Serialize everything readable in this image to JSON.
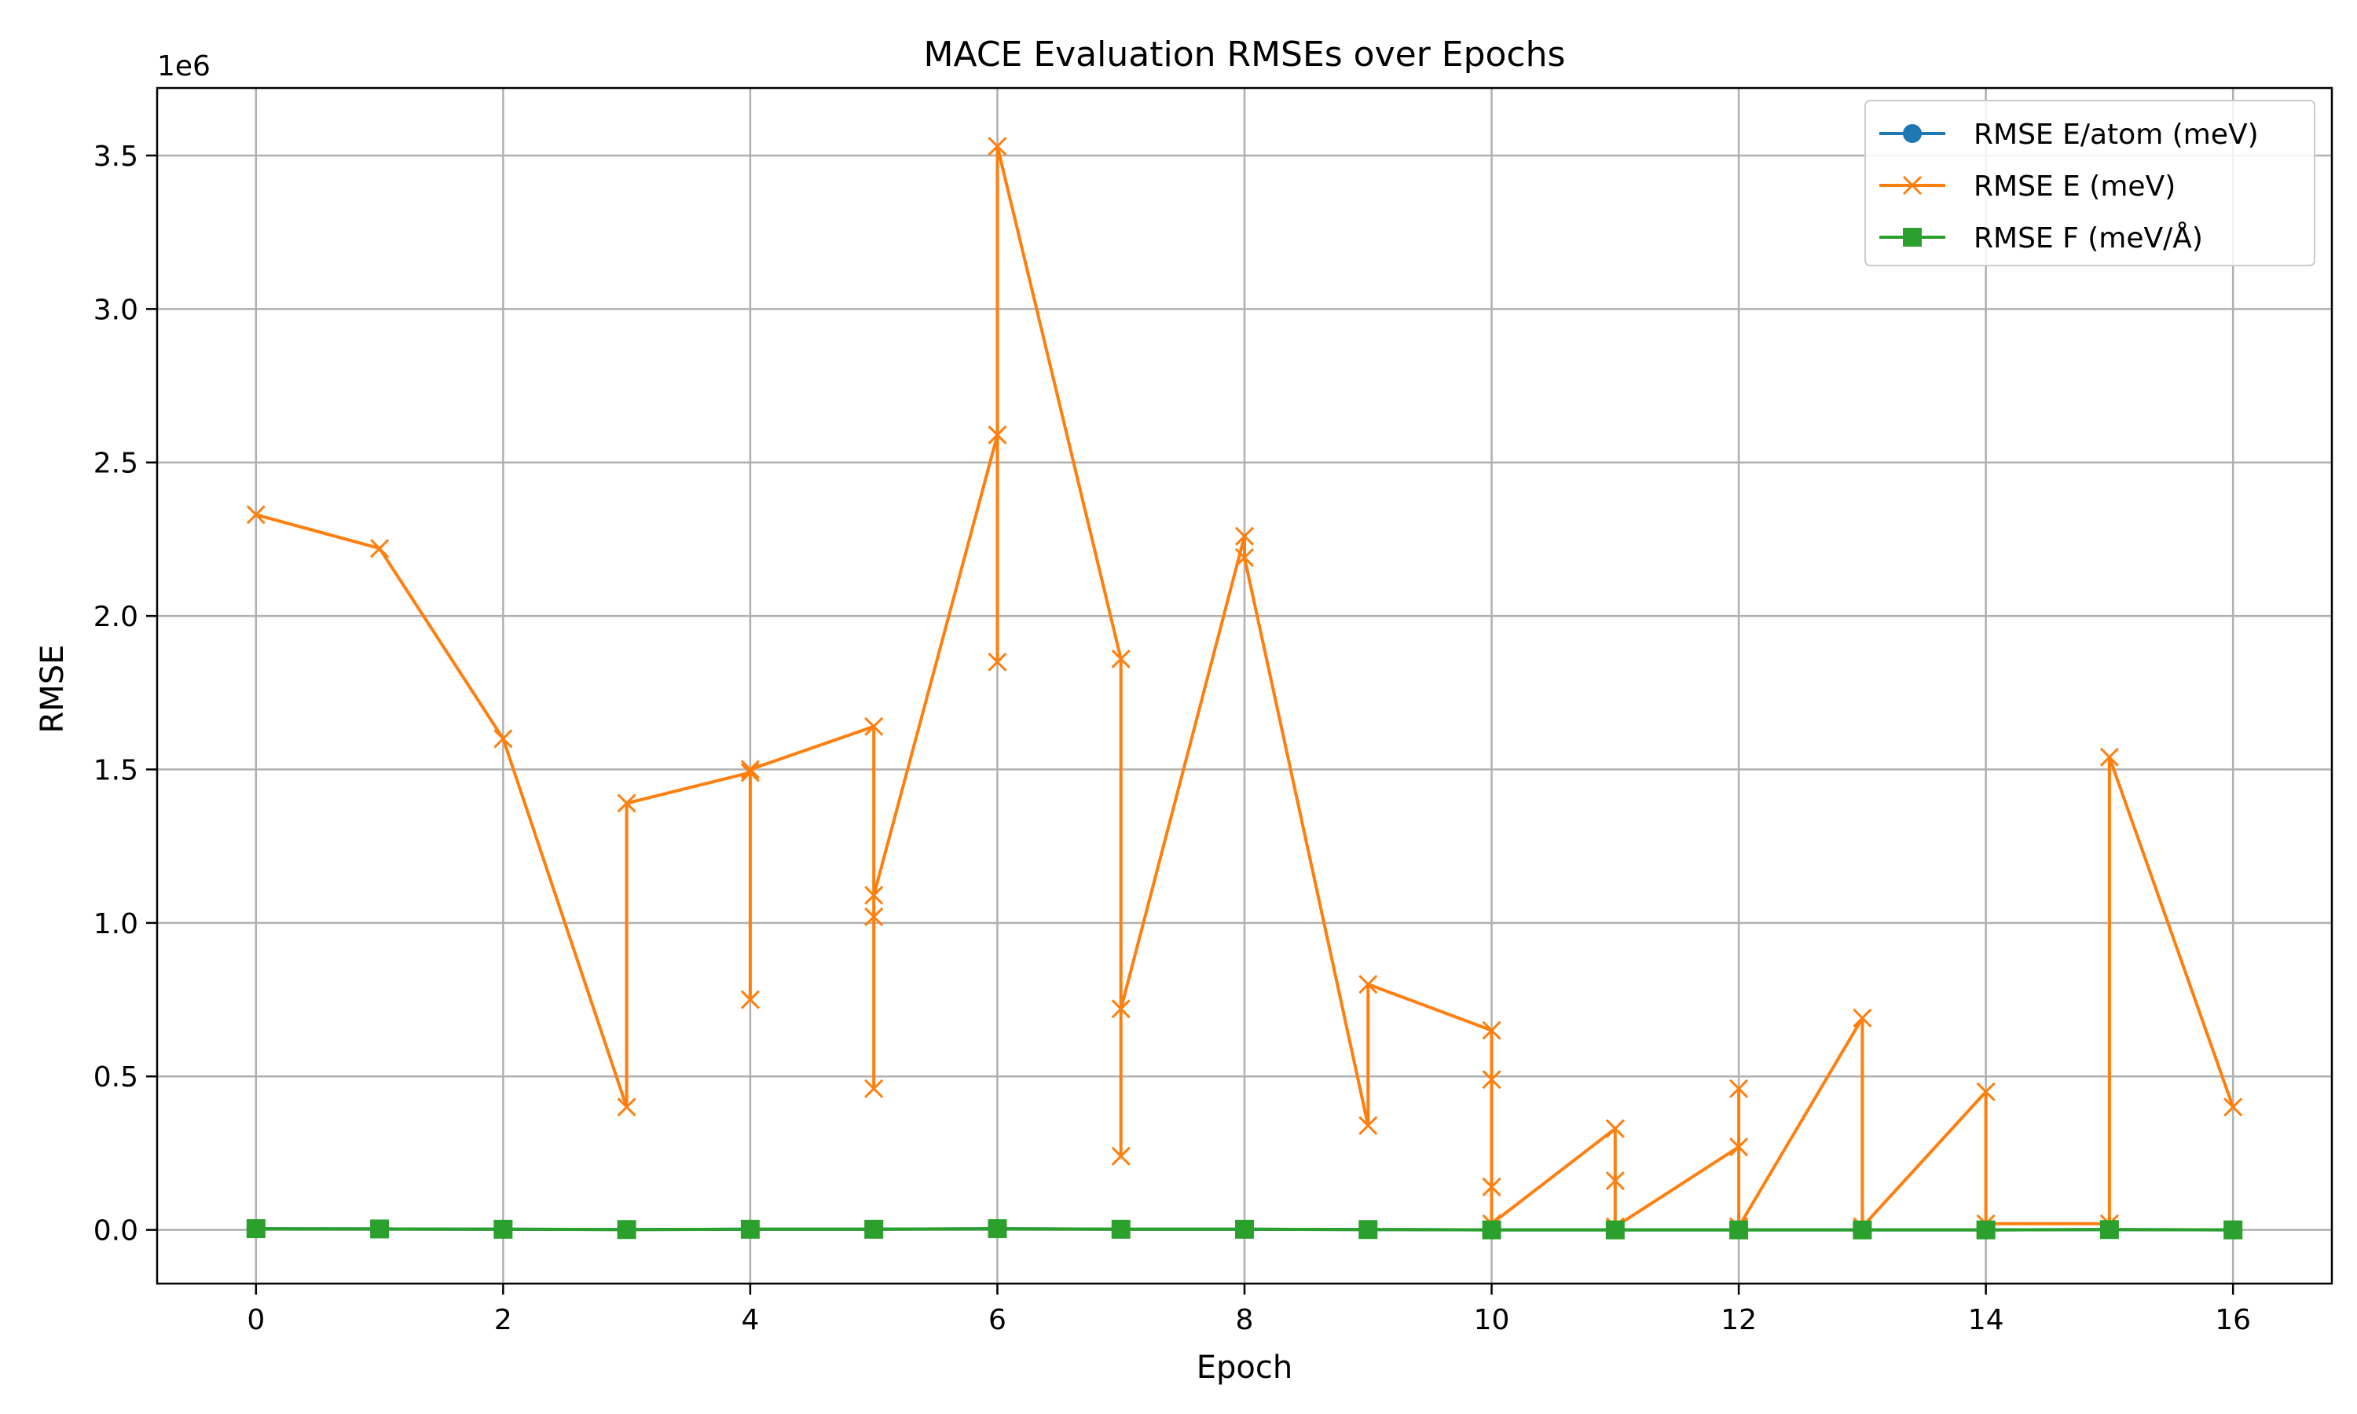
{
  "chart_data": {
    "type": "line",
    "title": "MACE Evaluation RMSEs over Epochs",
    "xlabel": "Epoch",
    "ylabel": "RMSE",
    "y_offset_label": "1e6",
    "xlim": [
      -0.8,
      16.8
    ],
    "ylim": [
      -0.175,
      3.72
    ],
    "y_scale_note": "values in units of 1e6",
    "x_ticks": [
      0,
      2,
      4,
      6,
      8,
      10,
      12,
      14,
      16
    ],
    "x_tick_labels": [
      "0",
      "2",
      "4",
      "6",
      "8",
      "10",
      "12",
      "14",
      "16"
    ],
    "y_ticks": [
      0.0,
      0.5,
      1.0,
      1.5,
      2.0,
      2.5,
      3.0,
      3.5
    ],
    "y_tick_labels": [
      "0.0",
      "0.5",
      "1.0",
      "1.5",
      "2.0",
      "2.5",
      "3.0",
      "3.5"
    ],
    "grid": true,
    "legend_position": "top-right",
    "series": [
      {
        "name": "RMSE E/atom (meV)",
        "color": "#1f77b4",
        "marker": "circle",
        "x": [
          0,
          1,
          2,
          3,
          4,
          5,
          6,
          7,
          8,
          9,
          10,
          11,
          12,
          13,
          14,
          15,
          16
        ],
        "y": [
          0.004,
          0.003,
          0.002,
          0.001,
          0.002,
          0.002,
          0.004,
          0.002,
          0.002,
          0.001,
          0.0,
          0.0,
          0.0,
          0.0,
          0.0,
          0.001,
          0.0
        ]
      },
      {
        "name": "RMSE E (meV)",
        "color": "#ff7f0e",
        "marker": "x",
        "x": [
          0,
          1,
          2,
          3,
          3,
          4,
          4,
          4,
          5,
          5,
          5,
          5,
          6,
          6,
          6,
          7,
          7,
          7,
          8,
          8,
          9,
          9,
          10,
          10,
          10,
          10,
          11,
          11,
          11,
          12,
          12,
          12,
          13,
          13,
          14,
          14,
          15,
          15,
          16
        ],
        "y": [
          2.33,
          2.22,
          1.6,
          0.4,
          1.39,
          1.49,
          0.75,
          1.5,
          1.64,
          0.46,
          1.02,
          1.09,
          2.59,
          1.85,
          3.53,
          1.86,
          0.24,
          0.72,
          2.26,
          2.19,
          0.34,
          0.8,
          0.65,
          0.14,
          0.49,
          0.02,
          0.33,
          0.16,
          0.01,
          0.27,
          0.46,
          0.01,
          0.69,
          0.01,
          0.45,
          0.02,
          0.02,
          1.54,
          0.4
        ]
      },
      {
        "name": "RMSE F (meV/Å)",
        "color": "#2ca02c",
        "marker": "square",
        "x": [
          0,
          1,
          2,
          3,
          4,
          5,
          6,
          7,
          8,
          9,
          10,
          11,
          12,
          13,
          14,
          15,
          16
        ],
        "y": [
          0.004,
          0.003,
          0.002,
          0.001,
          0.002,
          0.002,
          0.004,
          0.002,
          0.002,
          0.001,
          0.0,
          0.0,
          0.0,
          0.0,
          0.0,
          0.001,
          0.0
        ]
      }
    ]
  }
}
